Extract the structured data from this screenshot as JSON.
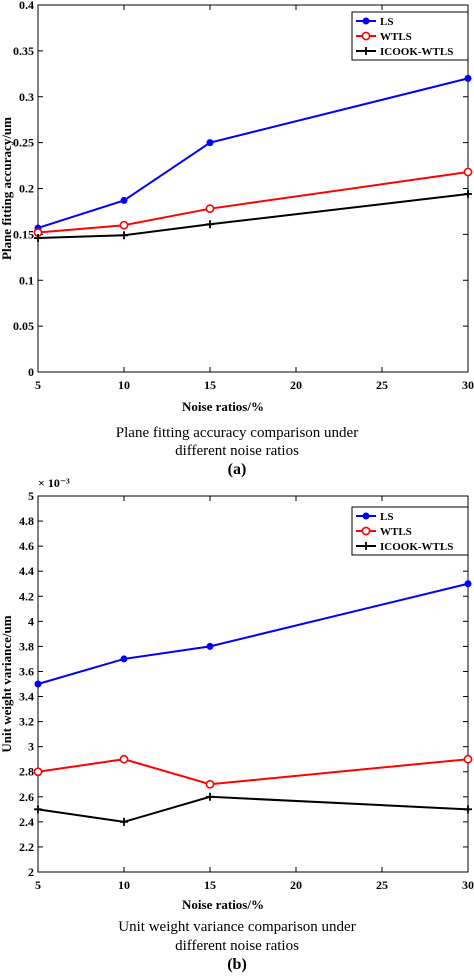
{
  "chart_data": [
    {
      "type": "line",
      "panel_label": "(a)",
      "caption_lines": [
        "Plane fitting accuracy comparison under",
        "different noise ratios"
      ],
      "xlabel": "Noise ratios/%",
      "ylabel": "Plane fitting accuracy/um",
      "xlim": [
        5,
        30
      ],
      "ylim": [
        0,
        0.4
      ],
      "x_ticks": [
        5,
        10,
        15,
        20,
        25,
        30
      ],
      "y_ticks": [
        0,
        0.05,
        0.1,
        0.15,
        0.2,
        0.25,
        0.3,
        0.35,
        0.4
      ],
      "x_tick_labels": [
        "5",
        "10",
        "15",
        "20",
        "25",
        "30"
      ],
      "y_tick_labels": [
        "0",
        "0.05",
        "0.1",
        "0.15",
        "0.2",
        "0.25",
        "0.3",
        "0.35",
        "0.4"
      ],
      "exponent_label": "",
      "legend_position": "top-right",
      "grid": false,
      "x": [
        5,
        10,
        15,
        30
      ],
      "series": [
        {
          "name": "LS",
          "color": "#0000ff",
          "marker": "dot",
          "values": [
            0.157,
            0.187,
            0.25,
            0.32
          ]
        },
        {
          "name": "WTLS",
          "color": "#ff0000",
          "marker": "circle",
          "values": [
            0.152,
            0.16,
            0.178,
            0.218
          ]
        },
        {
          "name": "ICOOK-WTLS",
          "color": "#000000",
          "marker": "plus",
          "values": [
            0.146,
            0.149,
            0.161,
            0.194
          ]
        }
      ]
    },
    {
      "type": "line",
      "panel_label": "(b)",
      "caption_lines": [
        "Unit weight variance comparison under",
        "different noise ratios"
      ],
      "xlabel": "Noise ratios/%",
      "ylabel": "Unit weight variance/um",
      "xlim": [
        5,
        30
      ],
      "ylim": [
        0.002,
        0.005
      ],
      "x_ticks": [
        5,
        10,
        15,
        20,
        25,
        30
      ],
      "y_ticks": [
        0.002,
        0.0022,
        0.0024,
        0.0026,
        0.0028,
        0.003,
        0.0032,
        0.0034,
        0.0036,
        0.0038,
        0.004,
        0.0042,
        0.0044,
        0.0046,
        0.0048,
        0.005
      ],
      "x_tick_labels": [
        "5",
        "10",
        "15",
        "20",
        "25",
        "30"
      ],
      "y_tick_labels": [
        "2",
        "2.2",
        "2.4",
        "2.6",
        "2.8",
        "3",
        "3.2",
        "3.4",
        "3.6",
        "3.8",
        "4",
        "4.2",
        "4.4",
        "4.6",
        "4.8",
        "5"
      ],
      "exponent_label": "× 10⁻³",
      "legend_position": "top-right",
      "grid": false,
      "x": [
        5,
        10,
        15,
        30
      ],
      "series": [
        {
          "name": "LS",
          "color": "#0000ff",
          "marker": "dot",
          "values": [
            0.0035,
            0.0037,
            0.0038,
            0.0043
          ]
        },
        {
          "name": "WTLS",
          "color": "#ff0000",
          "marker": "circle",
          "values": [
            0.0028,
            0.0029,
            0.0027,
            0.0029
          ]
        },
        {
          "name": "ICOOK-WTLS",
          "color": "#000000",
          "marker": "plus",
          "values": [
            0.0025,
            0.0024,
            0.0026,
            0.0025
          ]
        }
      ]
    }
  ]
}
